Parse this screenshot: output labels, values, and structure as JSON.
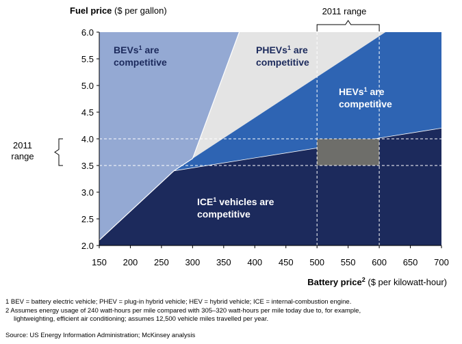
{
  "chart_data": {
    "type": "area",
    "y_title": "Fuel price",
    "y_unit": "($ per gallon)",
    "x_title": "Battery price",
    "x_title_sup": "2",
    "x_unit": "($ per kilowatt-hour)",
    "xlim": [
      150,
      700
    ],
    "ylim": [
      2.0,
      6.0
    ],
    "x_ticks": [
      "150",
      "200",
      "250",
      "300",
      "350",
      "400",
      "450",
      "500",
      "550",
      "600",
      "650",
      "700"
    ],
    "y_ticks": [
      "2.0",
      "2.5",
      "3.0",
      "3.5",
      "4.0",
      "4.5",
      "5.0",
      "5.5",
      "6.0"
    ],
    "boundaries": {
      "ice_top": [
        [
          150,
          2.1
        ],
        [
          270,
          3.4
        ],
        [
          700,
          4.2
        ]
      ],
      "bev_edge": [
        [
          150,
          2.1
        ],
        [
          300,
          3.63
        ],
        [
          375,
          6.0
        ]
      ],
      "phev_hev_edge": [
        [
          300,
          3.63
        ],
        [
          610,
          6.0
        ]
      ]
    },
    "regions": [
      {
        "name": "BEVs",
        "sup": "1",
        "rest": " are",
        "line2": "competitive",
        "color": "#94a9d3",
        "text_color": "#1c2a5c"
      },
      {
        "name": "PHEVs",
        "sup": "1",
        "rest": " are",
        "line2": "competitive",
        "color": "#e4e4e4",
        "text_color": "#1c2a5c"
      },
      {
        "name": "HEVs",
        "sup": "1",
        "rest": " are",
        "line2": "competitive",
        "color": "#2e64b3",
        "text_color": "#ffffff"
      },
      {
        "name": "ICE",
        "sup": "1",
        "rest": " vehicles are",
        "line2": "competitive",
        "color": "#1c2a5c",
        "text_color": "#ffffff"
      }
    ],
    "range_2011": {
      "label": "2011 range",
      "y_label_line1": "2011",
      "y_label_line2": "range",
      "battery": [
        500,
        600
      ],
      "fuel": [
        3.5,
        4.0
      ],
      "overlap_color": "#6e6e6a"
    }
  },
  "footnotes": {
    "note1": "1 BEV = battery electric vehicle; PHEV = plug-in hybrid vehicle; HEV = hybrid vehicle; ICE = internal-combustion engine.",
    "note2_line1": "2 Assumes energy usage of 240 watt-hours per mile compared with 305–320 watt-hours per mile today due to, for example,",
    "note2_line2": "lightweighting, efficient air conditioning; assumes 12,500 vehicle miles travelled per year.",
    "source": "Source: US Energy Information Administration; McKinsey analysis"
  }
}
